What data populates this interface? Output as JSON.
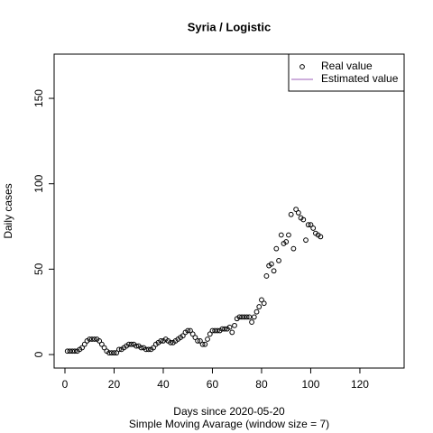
{
  "chart_data": {
    "type": "scatter",
    "title": "Syria / Logistic",
    "x_label": "Days since 2020-05-20",
    "subtitle": "Simple Moving Avarage (window size = 7)",
    "y_label": "Daily cases",
    "x": [
      1,
      2,
      3,
      4,
      5,
      6,
      7,
      8,
      9,
      10,
      11,
      12,
      13,
      14,
      15,
      16,
      17,
      18,
      19,
      20,
      21,
      22,
      23,
      24,
      25,
      26,
      27,
      28,
      29,
      30,
      31,
      32,
      33,
      34,
      35,
      36,
      37,
      38,
      39,
      40,
      41,
      42,
      43,
      44,
      45,
      46,
      47,
      48,
      49,
      50,
      51,
      52,
      53,
      54,
      55,
      56,
      57,
      58,
      59,
      60,
      61,
      62,
      63,
      64,
      65,
      66,
      67,
      68,
      69,
      70,
      71,
      72,
      73,
      74,
      75,
      76,
      77,
      78,
      79,
      80,
      81,
      82,
      83,
      84,
      85,
      86,
      87,
      88,
      89,
      90,
      91,
      92,
      93,
      94,
      95,
      96,
      97,
      98,
      99,
      100,
      101,
      102,
      103,
      104
    ],
    "series": [
      {
        "name": "Real value",
        "color": "#000000",
        "values": [
          2,
          2,
          2,
          2,
          2,
          3,
          4,
          6,
          8,
          9,
          9,
          9,
          9,
          8,
          6,
          4,
          2,
          1,
          1,
          1,
          1,
          3,
          3,
          4,
          5,
          6,
          6,
          6,
          5,
          5,
          4,
          4,
          3,
          3,
          3,
          4,
          6,
          7,
          8,
          8,
          9,
          8,
          7,
          7,
          8,
          9,
          10,
          11,
          13,
          14,
          14,
          12,
          10,
          8,
          8,
          6,
          6,
          9,
          12,
          14,
          14,
          14,
          14,
          15,
          15,
          15,
          16,
          13,
          17,
          21,
          22,
          22,
          22,
          22,
          22,
          19,
          22,
          25,
          28,
          32,
          30,
          46,
          52,
          53,
          49,
          62,
          55,
          70,
          65,
          66,
          70,
          82,
          62,
          85,
          83,
          80,
          79,
          67,
          76,
          76,
          74,
          71,
          70,
          69
        ]
      },
      {
        "name": "Estimated value",
        "color": "#9e5fb8"
      }
    ],
    "xlim": [
      -4.4,
      138
    ],
    "ylim": [
      -7.9,
      175.9
    ],
    "xticks": [
      0,
      20,
      40,
      60,
      80,
      100,
      120
    ],
    "yticks": [
      0,
      50,
      100,
      150
    ],
    "legend": "top-right"
  }
}
